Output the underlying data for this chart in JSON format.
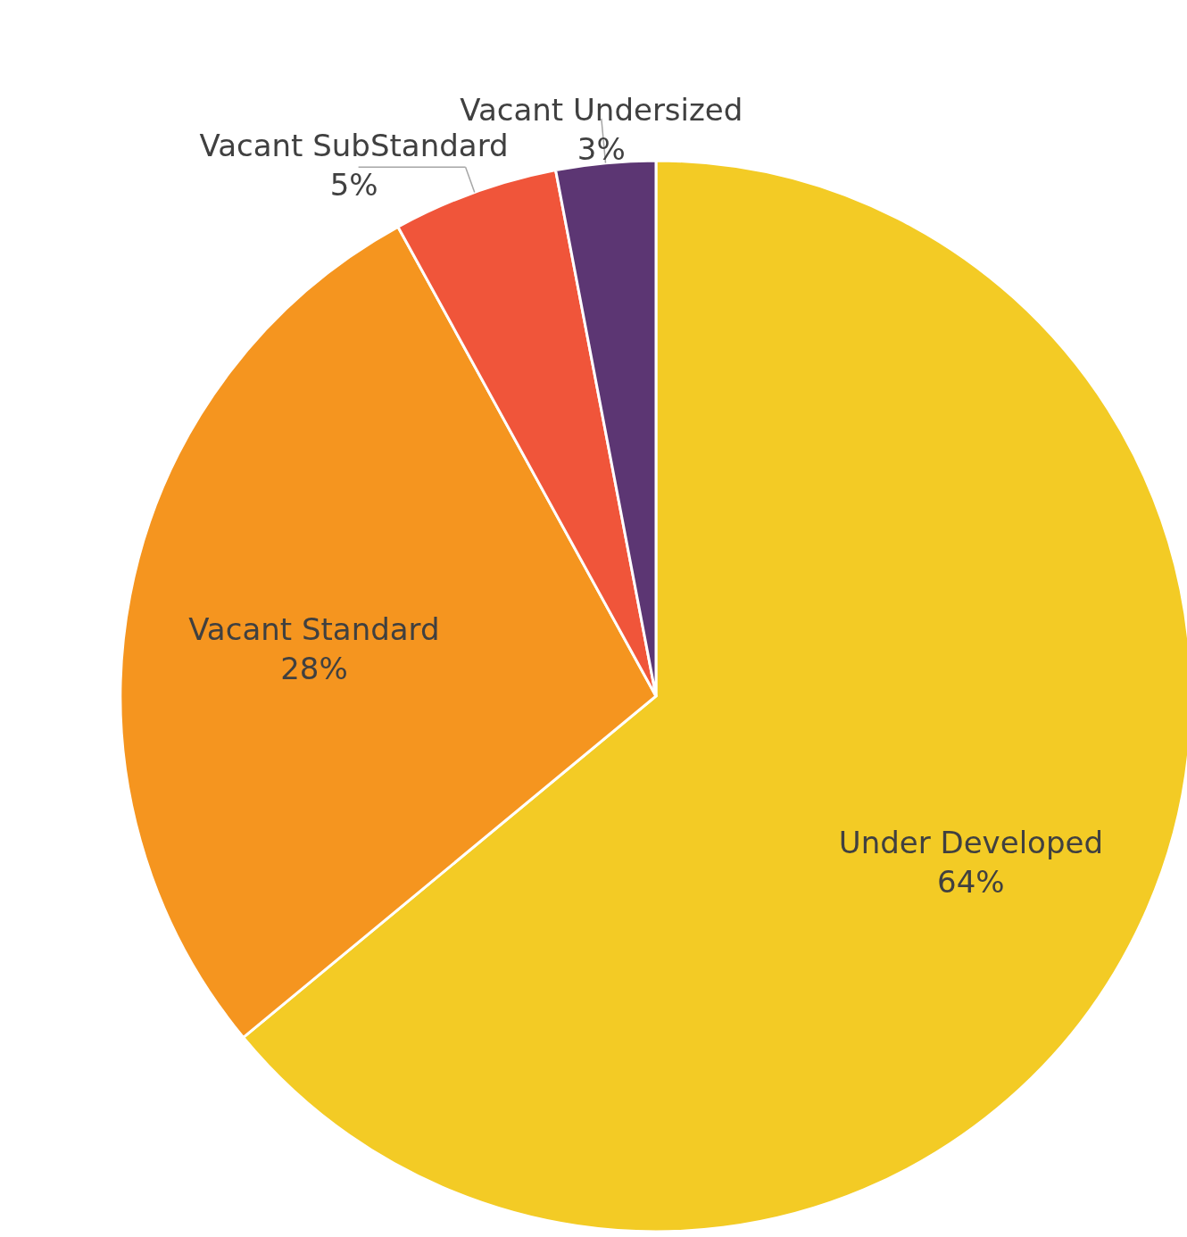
{
  "chart_data": {
    "type": "pie",
    "categories": [
      "Under Developed",
      "Vacant Standard",
      "Vacant SubStandard",
      "Vacant Undersized"
    ],
    "values": [
      64,
      28,
      5,
      3
    ],
    "colors": [
      "#f3cb25",
      "#f5951f",
      "#f0553a",
      "#5c3673"
    ],
    "value_labels": [
      "64%",
      "28%",
      "5%",
      "3%"
    ]
  }
}
